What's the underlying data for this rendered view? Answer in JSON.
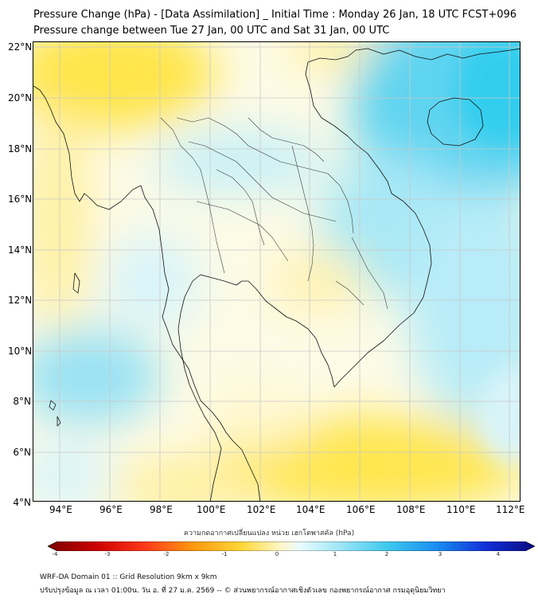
{
  "header": {
    "title_line1": "Pressure Change (hPa) - [Data Assimilation] _ Initial Time : Monday 26 Jan, 18 UTC FCST+096",
    "title_line2": "Pressure change between Tue 27 Jan, 00 UTC and Sat 31 Jan, 00 UTC"
  },
  "map": {
    "lat_labels": [
      "22°N",
      "20°N",
      "18°N",
      "16°N",
      "14°N",
      "12°N",
      "10°N",
      "8°N",
      "6°N",
      "4°N"
    ],
    "lon_labels": [
      "94°E",
      "96°E",
      "98°E",
      "100°E",
      "102°E",
      "104°E",
      "106°E",
      "108°E",
      "110°E",
      "112°E"
    ],
    "colors": {
      "positive": "#33ccee",
      "light_positive": "#c8f0f8",
      "near_zero": "#fffbe0",
      "light_negative": "#fff0a0",
      "negative": "#ffe040",
      "coast": "#000000",
      "grid": "#bbbbbb"
    }
  },
  "colorbar": {
    "title": "ความกดอากาศเปลี่ยนแปลง หน่วย เฮกโตพาสคัล (hPa)",
    "ticks": [
      "-4",
      "-3",
      "-2",
      "-1",
      "0",
      "1",
      "2",
      "3",
      "4"
    ],
    "range": [
      -4,
      4
    ]
  },
  "footer": {
    "line1": "WRF-DA Domain 01 :: Grid Resolution 9km x 9km",
    "line2": "ปรับปรุงข้อมูล ณ เวลา 01:00น. วัน อ. ที่ 27 ม.ค. 2569 -- © ส่วนพยากรณ์อากาศเชิงตัวเลข กองพยากรณ์อากาศ กรมอุตุนิยมวิทยา"
  }
}
